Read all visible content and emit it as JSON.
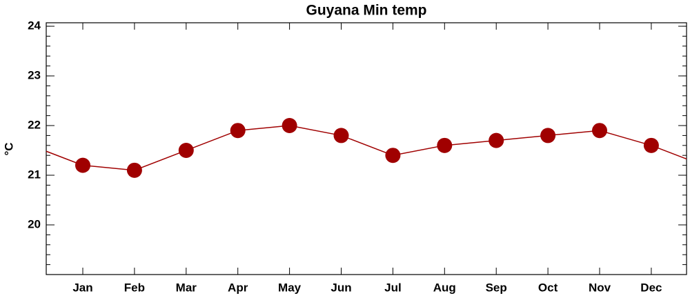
{
  "chart_data": {
    "type": "line",
    "title": "Guyana Min temp",
    "y_label": "°C",
    "categories": [
      "Jan",
      "Feb",
      "Mar",
      "Apr",
      "May",
      "Jun",
      "Jul",
      "Aug",
      "Sep",
      "Oct",
      "Nov",
      "Dec"
    ],
    "series": [
      {
        "name": "Min temp",
        "color": "#a00000",
        "values": [
          21.2,
          21.1,
          21.5,
          21.9,
          22.0,
          21.8,
          21.4,
          21.6,
          21.7,
          21.8,
          21.9,
          21.6
        ]
      }
    ],
    "ylim": [
      19.0,
      24.07
    ],
    "yticks": [
      20,
      21,
      22,
      23,
      24
    ]
  }
}
